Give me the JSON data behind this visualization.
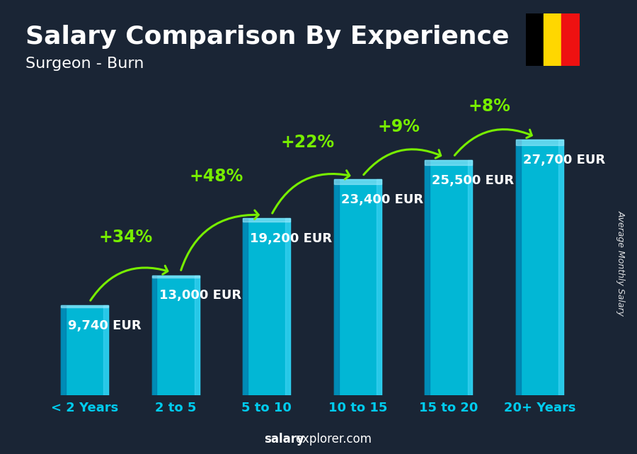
{
  "title": "Salary Comparison By Experience",
  "subtitle": "Surgeon - Burn",
  "categories": [
    "< 2 Years",
    "2 to 5",
    "5 to 10",
    "10 to 15",
    "15 to 20",
    "20+ Years"
  ],
  "values": [
    9740,
    13000,
    19200,
    23400,
    25500,
    27700
  ],
  "value_labels": [
    "9,740 EUR",
    "13,000 EUR",
    "19,200 EUR",
    "23,400 EUR",
    "25,500 EUR",
    "27,700 EUR"
  ],
  "pct_labels": [
    "+34%",
    "+48%",
    "+22%",
    "+9%",
    "+8%"
  ],
  "bar_color": "#00c8e8",
  "bar_left_shade": "#007baa",
  "bar_right_shade": "#55ddff",
  "bg_color": "#1a2535",
  "text_color": "#ffffff",
  "cyan_color": "#00ccee",
  "green_color": "#77ee00",
  "ylabel": "Average Monthly Salary",
  "footer_bold": "salary",
  "footer_normal": "explorer.com",
  "flag_colors": [
    "#FFD700",
    "#EE1111"
  ],
  "ylim": [
    0,
    34000
  ],
  "title_fontsize": 26,
  "subtitle_fontsize": 16,
  "value_fontsize": 13,
  "pct_fontsize": 17,
  "xtick_fontsize": 13,
  "arrow_arc_offsets": [
    0.095,
    0.105,
    0.09,
    0.08,
    0.08
  ]
}
